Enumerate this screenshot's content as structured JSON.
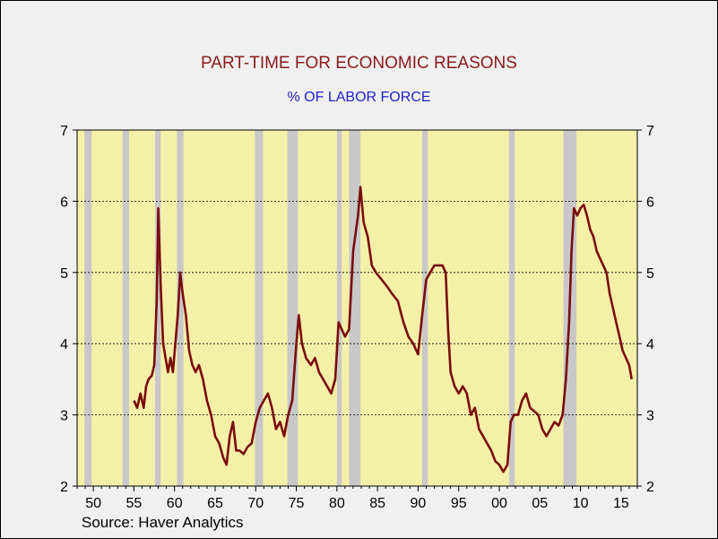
{
  "chart_data": {
    "type": "line",
    "title": "PART-TIME FOR ECONOMIC REASONS",
    "subtitle": "% OF LABOR FORCE",
    "source": "Source: Haver Analytics",
    "ylim": [
      2,
      7
    ],
    "xlim": [
      1948.0,
      2017.0
    ],
    "y_ticks": [
      "2",
      "3",
      "4",
      "5",
      "6",
      "7"
    ],
    "x_ticks": [
      {
        "year": 1950,
        "label": "50"
      },
      {
        "year": 1955,
        "label": "55"
      },
      {
        "year": 1960,
        "label": "60"
      },
      {
        "year": 1965,
        "label": "65"
      },
      {
        "year": 1970,
        "label": "70"
      },
      {
        "year": 1975,
        "label": "75"
      },
      {
        "year": 1980,
        "label": "80"
      },
      {
        "year": 1985,
        "label": "85"
      },
      {
        "year": 1990,
        "label": "90"
      },
      {
        "year": 1995,
        "label": "95"
      },
      {
        "year": 2000,
        "label": "00"
      },
      {
        "year": 2005,
        "label": "05"
      },
      {
        "year": 2010,
        "label": "10"
      },
      {
        "year": 2015,
        "label": "15"
      }
    ],
    "gridlines": [
      3,
      4,
      5,
      6
    ],
    "recessions": [
      [
        1948.9,
        1949.8
      ],
      [
        1953.6,
        1954.4
      ],
      [
        1957.6,
        1958.3
      ],
      [
        1960.3,
        1961.1
      ],
      [
        1969.9,
        1970.9
      ],
      [
        1973.9,
        1975.2
      ],
      [
        1980.0,
        1980.6
      ],
      [
        1981.5,
        1982.9
      ],
      [
        1990.5,
        1991.2
      ],
      [
        2001.2,
        2001.9
      ],
      [
        2007.9,
        2009.5
      ]
    ],
    "colors": {
      "plot_bg": "#f5f0a8",
      "recession": "#c8c8c8",
      "line": "#7a0c0c"
    },
    "series": [
      {
        "values": [
          [
            1955.0,
            3.2
          ],
          [
            1955.4,
            3.1
          ],
          [
            1955.8,
            3.3
          ],
          [
            1956.2,
            3.1
          ],
          [
            1956.5,
            3.4
          ],
          [
            1956.8,
            3.5
          ],
          [
            1957.2,
            3.55
          ],
          [
            1957.5,
            3.7
          ],
          [
            1957.8,
            4.6
          ],
          [
            1958.0,
            5.9
          ],
          [
            1958.3,
            4.8
          ],
          [
            1958.6,
            4.0
          ],
          [
            1958.9,
            3.8
          ],
          [
            1959.2,
            3.6
          ],
          [
            1959.5,
            3.8
          ],
          [
            1959.8,
            3.6
          ],
          [
            1960.1,
            4.0
          ],
          [
            1960.4,
            4.4
          ],
          [
            1960.7,
            5.0
          ],
          [
            1961.0,
            4.7
          ],
          [
            1961.4,
            4.4
          ],
          [
            1961.8,
            3.9
          ],
          [
            1962.2,
            3.7
          ],
          [
            1962.6,
            3.6
          ],
          [
            1963.0,
            3.7
          ],
          [
            1963.5,
            3.5
          ],
          [
            1964.0,
            3.2
          ],
          [
            1964.5,
            3.0
          ],
          [
            1965.0,
            2.7
          ],
          [
            1965.5,
            2.6
          ],
          [
            1966.0,
            2.4
          ],
          [
            1966.4,
            2.3
          ],
          [
            1966.8,
            2.7
          ],
          [
            1967.2,
            2.9
          ],
          [
            1967.6,
            2.5
          ],
          [
            1968.0,
            2.5
          ],
          [
            1968.5,
            2.45
          ],
          [
            1969.0,
            2.55
          ],
          [
            1969.5,
            2.6
          ],
          [
            1970.0,
            2.9
          ],
          [
            1970.5,
            3.1
          ],
          [
            1971.0,
            3.2
          ],
          [
            1971.5,
            3.3
          ],
          [
            1972.0,
            3.1
          ],
          [
            1972.5,
            2.8
          ],
          [
            1973.0,
            2.9
          ],
          [
            1973.5,
            2.7
          ],
          [
            1974.0,
            3.0
          ],
          [
            1974.5,
            3.2
          ],
          [
            1975.0,
            4.0
          ],
          [
            1975.3,
            4.4
          ],
          [
            1975.7,
            4.0
          ],
          [
            1976.2,
            3.8
          ],
          [
            1976.8,
            3.7
          ],
          [
            1977.3,
            3.8
          ],
          [
            1977.8,
            3.6
          ],
          [
            1978.3,
            3.5
          ],
          [
            1978.8,
            3.4
          ],
          [
            1979.3,
            3.3
          ],
          [
            1979.8,
            3.5
          ],
          [
            1980.2,
            4.3
          ],
          [
            1980.6,
            4.2
          ],
          [
            1981.0,
            4.1
          ],
          [
            1981.5,
            4.2
          ],
          [
            1982.0,
            5.3
          ],
          [
            1982.6,
            5.8
          ],
          [
            1982.9,
            6.2
          ],
          [
            1983.3,
            5.7
          ],
          [
            1983.8,
            5.5
          ],
          [
            1984.3,
            5.1
          ],
          [
            1984.8,
            5.0
          ],
          [
            1985.5,
            4.9
          ],
          [
            1986.2,
            4.8
          ],
          [
            1986.8,
            4.7
          ],
          [
            1987.5,
            4.6
          ],
          [
            1988.2,
            4.3
          ],
          [
            1988.8,
            4.1
          ],
          [
            1989.4,
            4.0
          ],
          [
            1990.0,
            3.85
          ],
          [
            1990.5,
            4.4
          ],
          [
            1991.0,
            4.9
          ],
          [
            1991.5,
            5.0
          ],
          [
            1992.0,
            5.1
          ],
          [
            1992.5,
            5.1
          ],
          [
            1993.0,
            5.1
          ],
          [
            1993.4,
            5.0
          ],
          [
            1993.7,
            4.2
          ],
          [
            1994.0,
            3.6
          ],
          [
            1994.5,
            3.4
          ],
          [
            1995.0,
            3.3
          ],
          [
            1995.5,
            3.4
          ],
          [
            1996.0,
            3.3
          ],
          [
            1996.5,
            3.0
          ],
          [
            1997.0,
            3.1
          ],
          [
            1997.5,
            2.8
          ],
          [
            1998.0,
            2.7
          ],
          [
            1998.5,
            2.6
          ],
          [
            1999.0,
            2.5
          ],
          [
            1999.5,
            2.35
          ],
          [
            2000.0,
            2.3
          ],
          [
            2000.5,
            2.2
          ],
          [
            2001.0,
            2.3
          ],
          [
            2001.4,
            2.9
          ],
          [
            2001.8,
            3.0
          ],
          [
            2002.3,
            3.0
          ],
          [
            2002.8,
            3.2
          ],
          [
            2003.3,
            3.3
          ],
          [
            2003.8,
            3.1
          ],
          [
            2004.3,
            3.05
          ],
          [
            2004.8,
            3.0
          ],
          [
            2005.3,
            2.8
          ],
          [
            2005.8,
            2.7
          ],
          [
            2006.3,
            2.8
          ],
          [
            2006.8,
            2.9
          ],
          [
            2007.3,
            2.85
          ],
          [
            2007.8,
            3.0
          ],
          [
            2008.2,
            3.5
          ],
          [
            2008.6,
            4.3
          ],
          [
            2008.9,
            5.3
          ],
          [
            2009.2,
            5.9
          ],
          [
            2009.6,
            5.8
          ],
          [
            2010.0,
            5.9
          ],
          [
            2010.4,
            5.95
          ],
          [
            2010.8,
            5.8
          ],
          [
            2011.2,
            5.6
          ],
          [
            2011.6,
            5.5
          ],
          [
            2012.0,
            5.3
          ],
          [
            2012.4,
            5.2
          ],
          [
            2012.8,
            5.1
          ],
          [
            2013.2,
            5.0
          ],
          [
            2013.6,
            4.7
          ],
          [
            2014.0,
            4.5
          ],
          [
            2014.4,
            4.3
          ],
          [
            2014.8,
            4.1
          ],
          [
            2015.2,
            3.9
          ],
          [
            2015.6,
            3.8
          ],
          [
            2016.0,
            3.7
          ],
          [
            2016.3,
            3.5
          ]
        ]
      }
    ]
  }
}
